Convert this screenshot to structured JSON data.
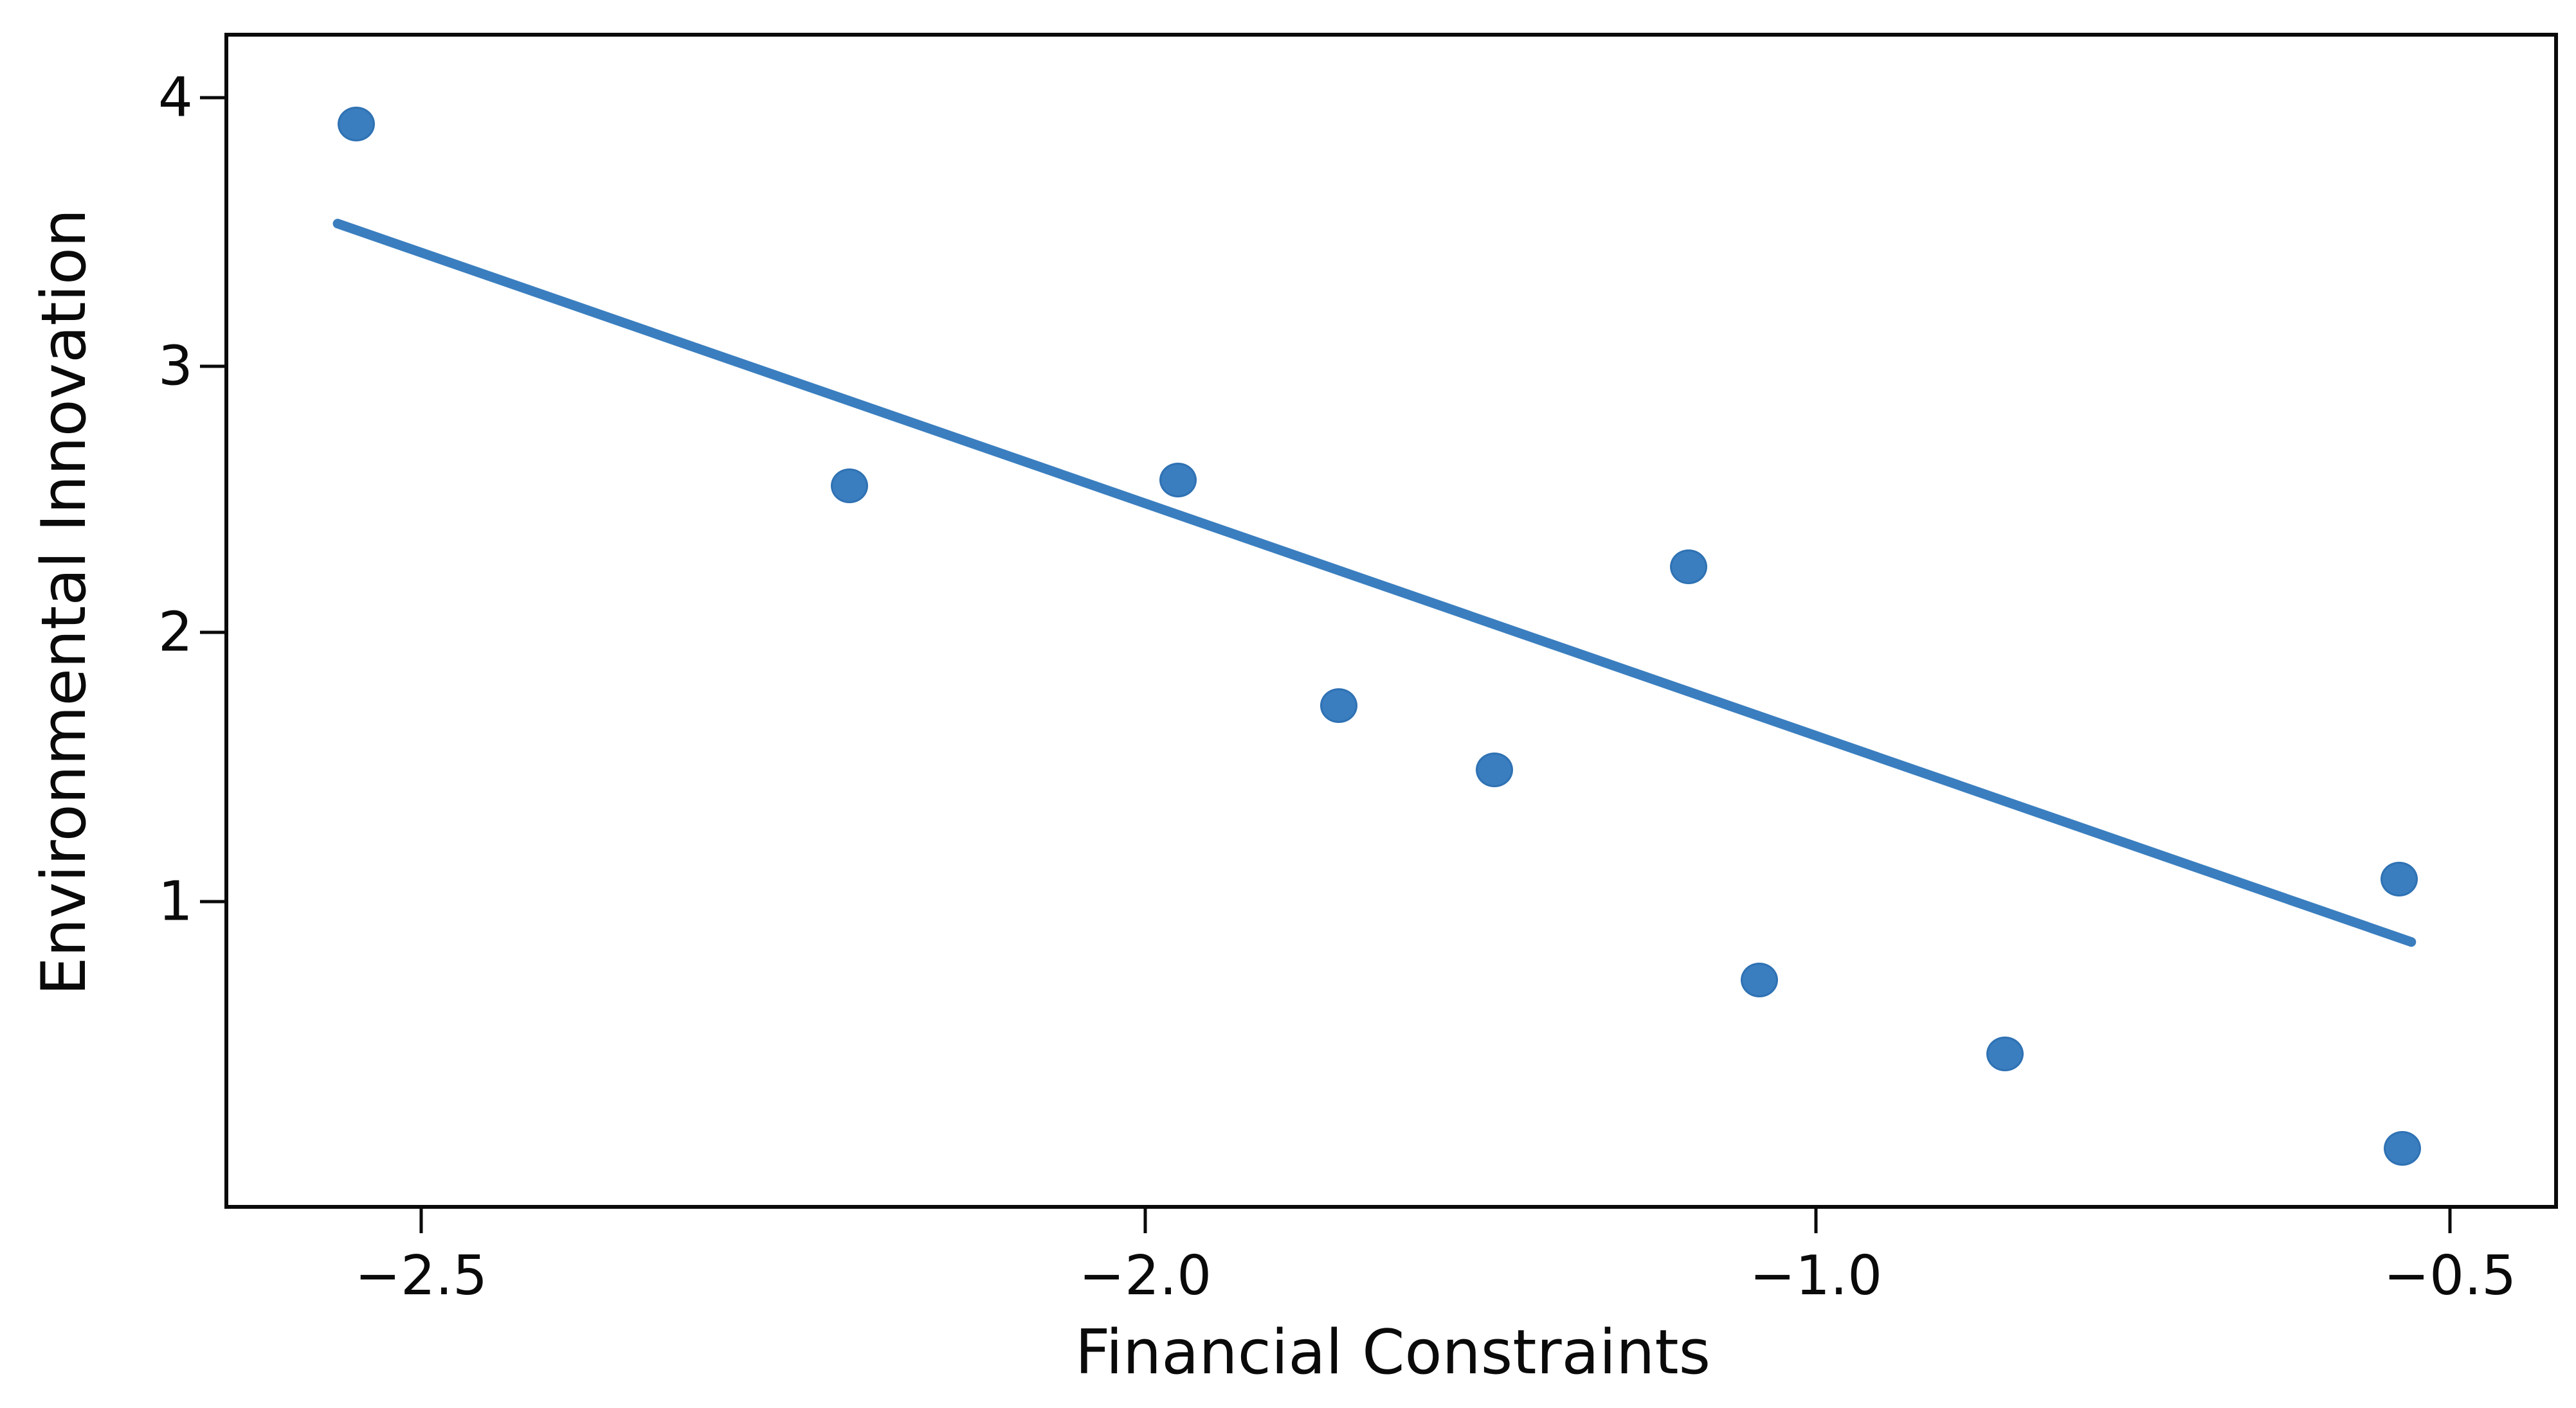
{
  "figure": {
    "background": "#ffffff",
    "accent_color": "#3a7ebf",
    "marker_edge_color": "#2f72b4",
    "axis_color": "#0a0a0a"
  },
  "chart_data": {
    "type": "scatter",
    "title": "",
    "xlabel": "Financial Constraints",
    "ylabel": "Environmental Innovation",
    "grid": false,
    "legend": null,
    "x_tick_values": [
      -2.5,
      -2.0,
      -1.0,
      -0.5
    ],
    "y_tick_values": [
      4,
      3,
      2,
      1
    ],
    "x_ticks": [
      {
        "label": "−2.5",
        "value": -2.5,
        "fx": 0.0843
      },
      {
        "label": "−2.0",
        "value": -2.0,
        "fx": 0.3946
      },
      {
        "label": "−1.0",
        "value": -1.0,
        "fx": 0.682
      },
      {
        "label": "−0.5",
        "value": -0.5,
        "fx": 0.9537
      }
    ],
    "y_ticks": [
      {
        "label": "4",
        "value": 4,
        "fy": 0.0552
      },
      {
        "label": "3",
        "value": 3,
        "fy": 0.2836
      },
      {
        "label": "2",
        "value": 2,
        "fy": 0.5098
      },
      {
        "label": "1",
        "value": 1,
        "fy": 0.7388
      }
    ],
    "points": [
      {
        "x": -2.55,
        "y": 3.9,
        "fx": 0.0565,
        "fy": 0.0776
      },
      {
        "x": -2.2,
        "y": 2.55,
        "fx": 0.2678,
        "fy": 0.3852
      },
      {
        "x": -1.98,
        "y": 2.57,
        "fx": 0.4086,
        "fy": 0.3803
      },
      {
        "x": -1.71,
        "y": 1.73,
        "fx": 0.4775,
        "fy": 0.5721
      },
      {
        "x": -1.48,
        "y": 1.49,
        "fx": 0.5442,
        "fy": 0.6268
      },
      {
        "x": -1.19,
        "y": 2.25,
        "fx": 0.6274,
        "fy": 0.4541
      },
      {
        "x": -1.08,
        "y": 0.71,
        "fx": 0.6577,
        "fy": 0.8055
      },
      {
        "x": -0.85,
        "y": 0.43,
        "fx": 0.763,
        "fy": 0.8683
      },
      {
        "x": -0.54,
        "y": 1.08,
        "fx": 0.9319,
        "fy": 0.7197
      },
      {
        "x": -0.54,
        "y": 0.08,
        "fx": 0.9333,
        "fy": 0.9486
      }
    ],
    "trend_line": {
      "x1": -2.56,
      "y1": 3.54,
      "x2": -0.53,
      "y2": 0.84,
      "fx1": 0.0466,
      "fy1": 0.1607,
      "fx2": 0.9392,
      "fy2": 0.7743
    }
  }
}
